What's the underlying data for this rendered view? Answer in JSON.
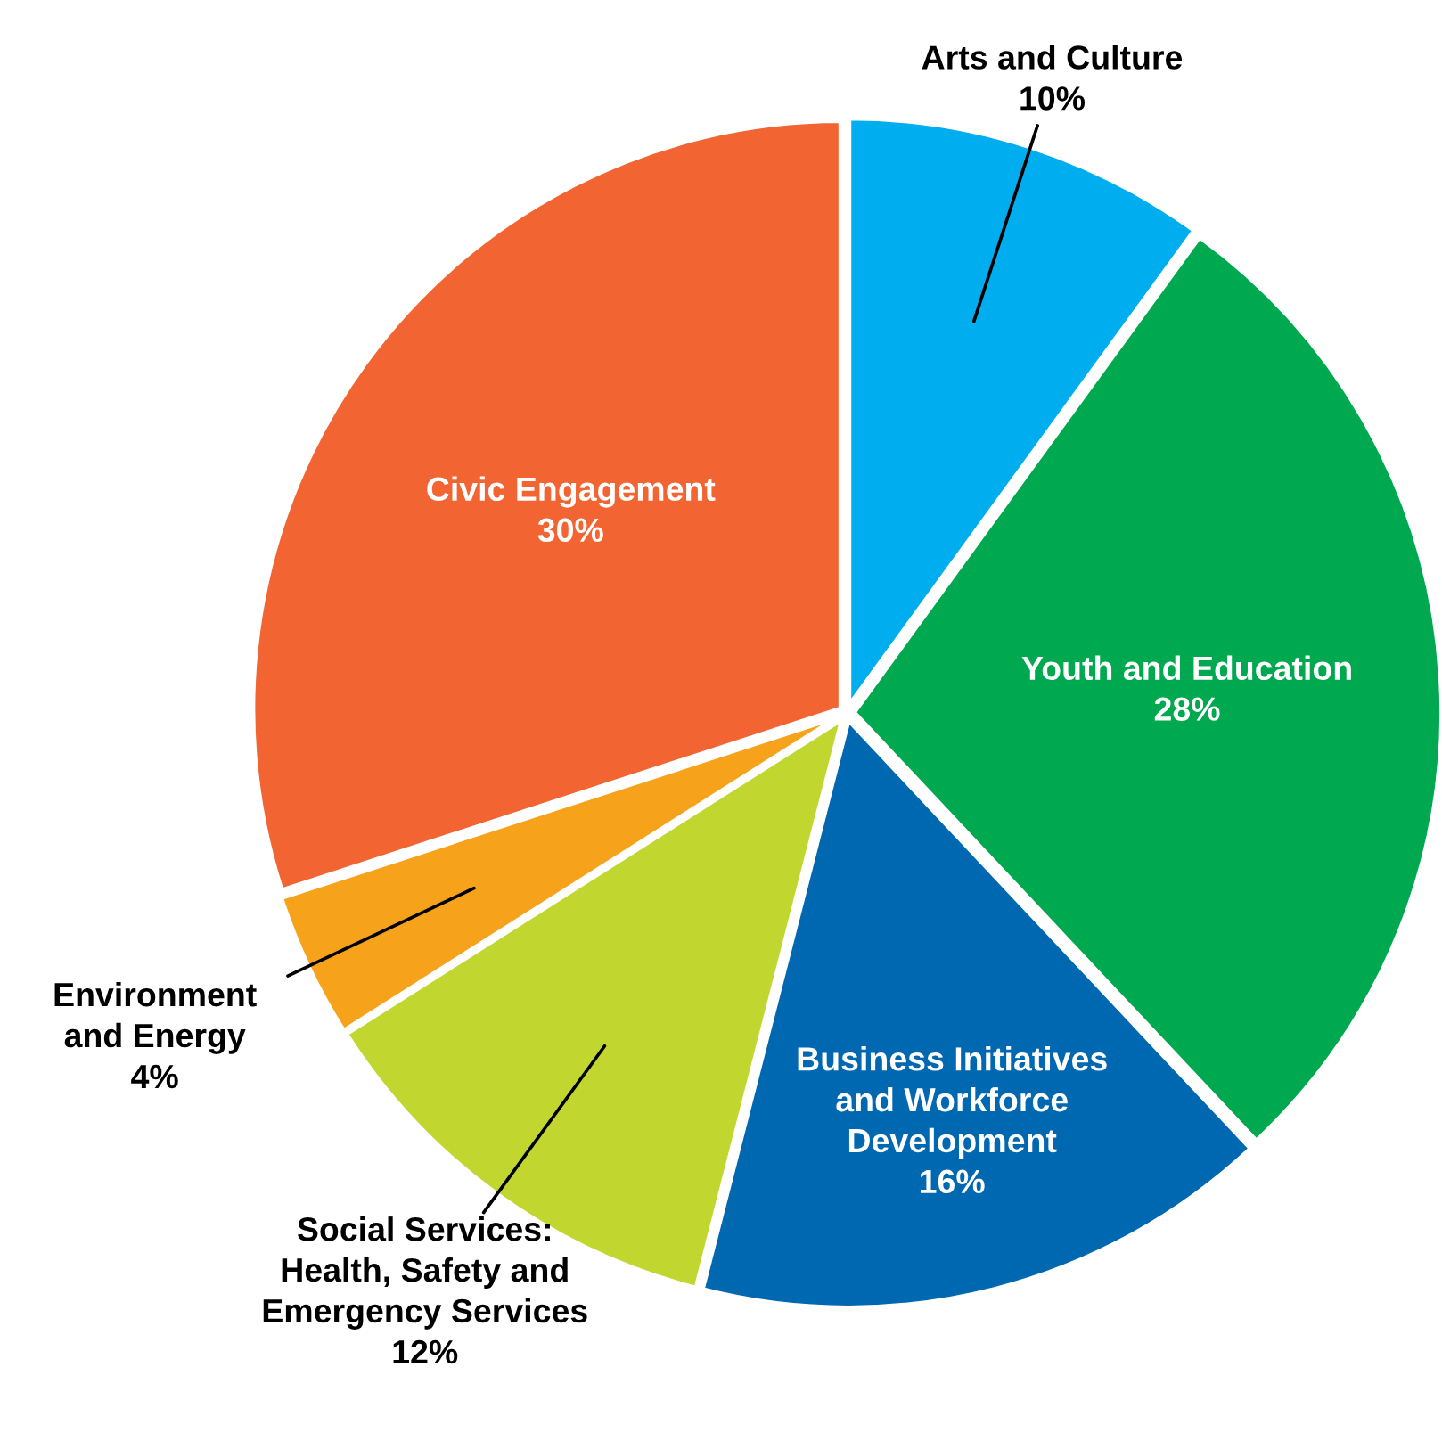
{
  "chart_data": {
    "type": "pie",
    "categories": [
      "Arts and Culture",
      "Youth and Education",
      "Business Initiatives\nand Workforce\nDevelopment",
      "Social Services:\nHealth, Safety and\nEmergency Services",
      "Environment\nand Energy",
      "Civic Engagement"
    ],
    "values": [
      10,
      28,
      16,
      12,
      4,
      30
    ],
    "value_labels": [
      "10%",
      "28%",
      "16%",
      "12%",
      "4%",
      "30%"
    ],
    "colors": [
      "#00aeef",
      "#00a94f",
      "#0067b1",
      "#c1d72f",
      "#f7a21b",
      "#f26532"
    ]
  }
}
